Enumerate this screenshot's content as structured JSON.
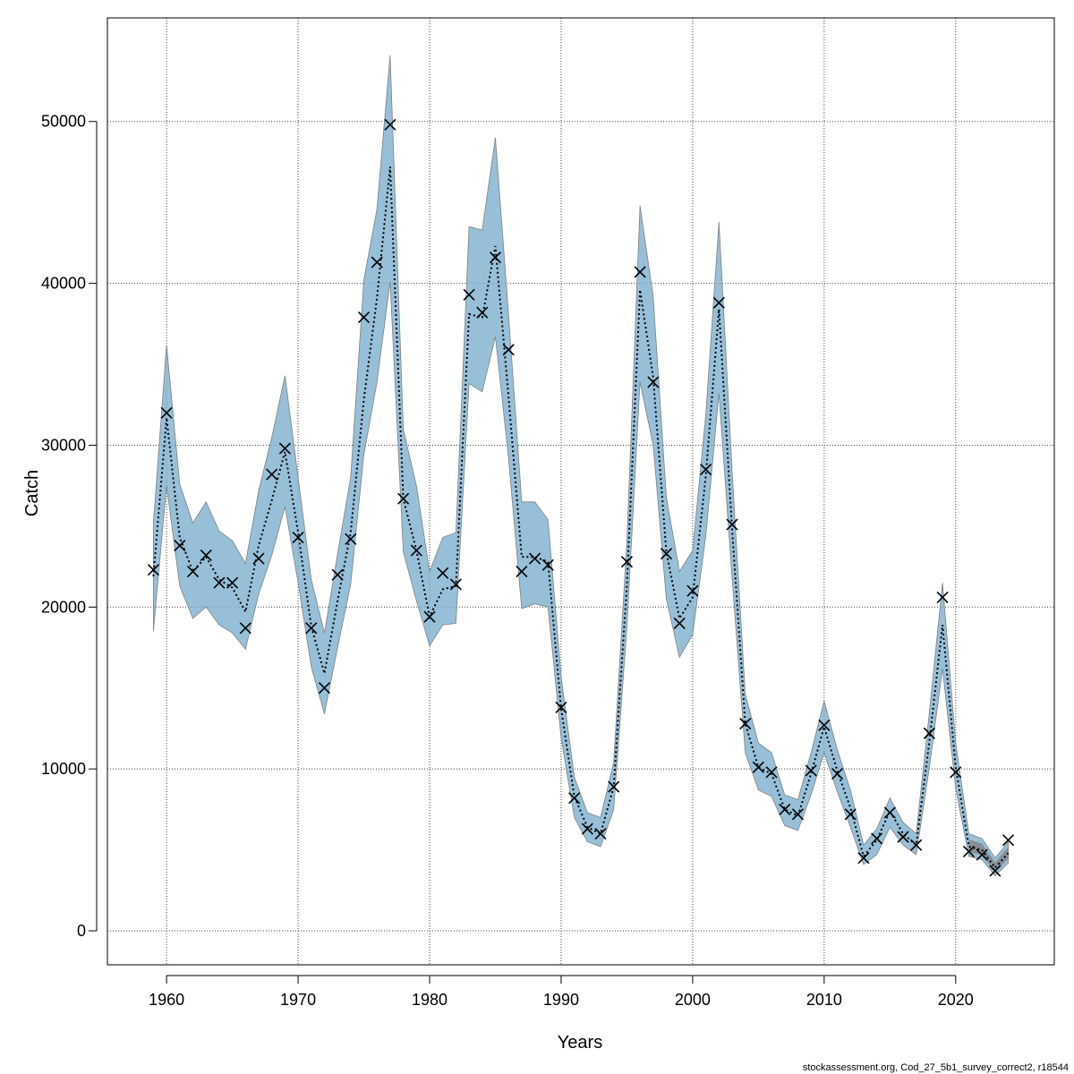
{
  "chart_data": {
    "type": "line",
    "title": "",
    "xlabel": "Years",
    "ylabel": "Catch",
    "xlim": [
      1955.5,
      2027.5
    ],
    "ylim": [
      -2100,
      56400
    ],
    "xticks": [
      1960,
      1970,
      1980,
      1990,
      2000,
      2010,
      2020
    ],
    "yticks": [
      0,
      10000,
      20000,
      30000,
      40000,
      50000
    ],
    "grid": true,
    "legend": "none",
    "colors": {
      "band": "#6a9fbf",
      "band_light": "#a6d4ec",
      "band_gray": "#7f7f7f",
      "fit_line": "#000000",
      "observed": "#000000"
    },
    "series": [
      {
        "x": [
          1959,
          1960,
          1961,
          1962,
          1963,
          1964,
          1965,
          1966,
          1967,
          1968,
          1969,
          1970,
          1971,
          1972,
          1973,
          1974,
          1975,
          1976,
          1977,
          1978,
          1979,
          1980,
          1981,
          1982,
          1983,
          1984,
          1985,
          1986,
          1987,
          1988,
          1989,
          1990,
          1991,
          1992,
          1993,
          1994,
          1995,
          1996,
          1997,
          1998,
          1999,
          2000,
          2001,
          2002,
          2003,
          2004,
          2005,
          2006,
          2007,
          2008,
          2009,
          2010,
          2011,
          2012,
          2013,
          2014,
          2015,
          2016,
          2017,
          2018,
          2019,
          2020,
          2021,
          2022,
          2023,
          2024
        ],
        "fit": [
          21900,
          31700,
          24300,
          22200,
          23100,
          21700,
          21200,
          19700,
          23800,
          26600,
          29600,
          24600,
          18800,
          15900,
          20400,
          24600,
          32800,
          39100,
          47200,
          26700,
          23500,
          19400,
          21100,
          21300,
          38100,
          37900,
          42300,
          33000,
          23100,
          23100,
          22800,
          13700,
          8300,
          6400,
          6000,
          8900,
          21300,
          39600,
          34200,
          23400,
          19300,
          20600,
          28100,
          38400,
          24800,
          12800,
          10100,
          9700,
          7500,
          7100,
          9700,
          12600,
          9900,
          7600,
          4600,
          5600,
          7400,
          6000,
          5300,
          11700,
          18900,
          10100,
          5200,
          5000,
          3900,
          4800
        ],
        "upper": [
          25200,
          36200,
          27600,
          25200,
          26500,
          24700,
          24100,
          22700,
          27200,
          30500,
          34300,
          28000,
          21700,
          18400,
          23300,
          28000,
          40200,
          44600,
          54100,
          31000,
          27500,
          22200,
          24300,
          24600,
          43500,
          43300,
          49000,
          38100,
          26500,
          26500,
          25400,
          15700,
          9500,
          7300,
          7000,
          10400,
          24000,
          44800,
          39200,
          26800,
          22200,
          23500,
          31900,
          43800,
          28400,
          14600,
          11600,
          11000,
          8400,
          8100,
          11000,
          14200,
          11200,
          8700,
          5300,
          6300,
          8200,
          6700,
          6000,
          13500,
          21500,
          11600,
          6000,
          5700,
          4500,
          5500
        ],
        "lower": [
          18500,
          27500,
          21300,
          19300,
          20000,
          18900,
          18400,
          17400,
          20800,
          23200,
          26200,
          21500,
          16300,
          13400,
          17500,
          21400,
          29400,
          33900,
          40100,
          23400,
          20400,
          17600,
          18900,
          19000,
          33800,
          33300,
          36700,
          29200,
          19900,
          20200,
          20000,
          11900,
          7000,
          5500,
          5200,
          7500,
          18700,
          33900,
          30000,
          20500,
          16900,
          18300,
          24400,
          33200,
          21800,
          11000,
          8700,
          8300,
          6500,
          6200,
          8400,
          11000,
          8600,
          6400,
          4100,
          4700,
          6400,
          5300,
          4700,
          10100,
          16200,
          8800,
          4600,
          4400,
          3400,
          4200
        ],
        "observed": [
          22300,
          32000,
          23800,
          22200,
          23200,
          21500,
          21500,
          18700,
          23000,
          28200,
          29800,
          24300,
          18700,
          15000,
          22000,
          24200,
          37900,
          41300,
          49800,
          26700,
          23500,
          19400,
          22100,
          21400,
          39300,
          38200,
          41600,
          35900,
          22200,
          23000,
          22600,
          13800,
          8200,
          6300,
          6000,
          8900,
          22800,
          40700,
          33900,
          23300,
          19000,
          21000,
          28500,
          38800,
          25100,
          12800,
          10100,
          9800,
          7500,
          7200,
          9900,
          12700,
          9700,
          7200,
          4500,
          5700,
          7300,
          5800,
          5300,
          12200,
          20600,
          9800,
          4900,
          4700,
          3700,
          5600
        ]
      }
    ]
  },
  "footer_text": "stockassessment.org, Cod_27_5b1_survey_correct2, r18544"
}
